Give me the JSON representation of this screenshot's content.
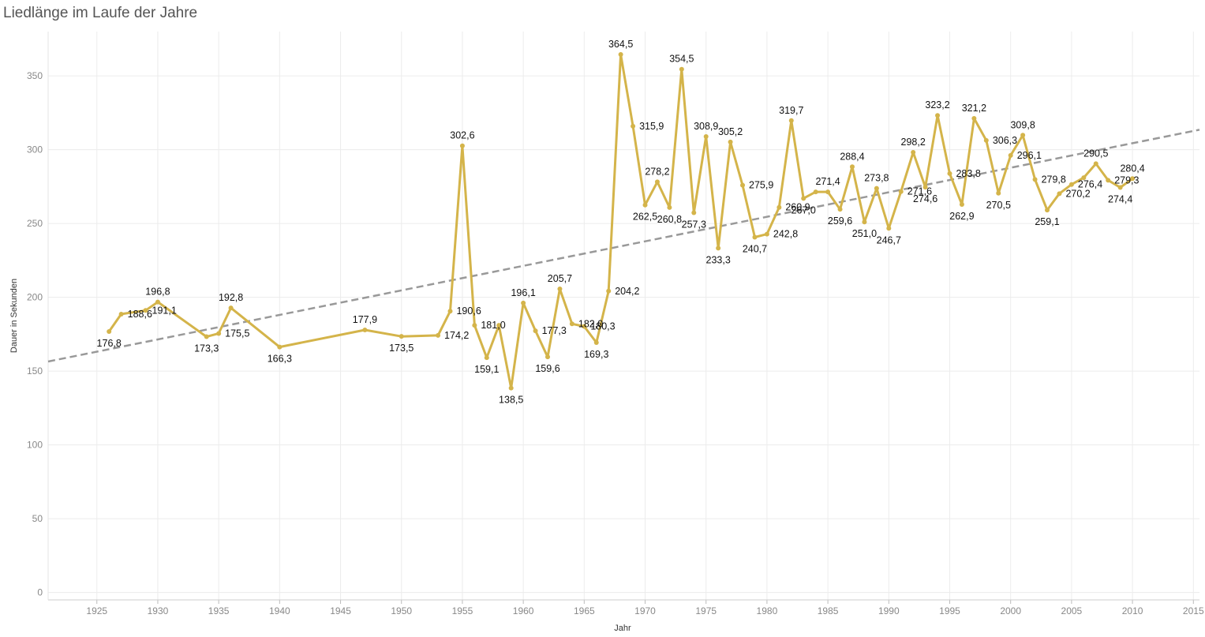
{
  "chart_data": {
    "type": "line",
    "title": "Liedlänge im Laufe der Jahre",
    "xlabel": "Jahr",
    "ylabel": "Dauer in Sekunden",
    "xlim": [
      1921,
      2015.5
    ],
    "ylim": [
      -5,
      380
    ],
    "x_ticks": [
      1925,
      1930,
      1935,
      1940,
      1945,
      1950,
      1955,
      1960,
      1965,
      1970,
      1975,
      1980,
      1985,
      1990,
      1995,
      2000,
      2005,
      2010,
      2015
    ],
    "y_ticks": [
      0,
      50,
      100,
      150,
      200,
      250,
      300,
      350
    ],
    "grid": true,
    "series": [
      {
        "color": "#d4b44a",
        "points": [
          {
            "x": 1926,
            "y": 176.8,
            "label": "176,8"
          },
          {
            "x": 1927,
            "y": 188.6,
            "label": "188,6"
          },
          {
            "x": 1929,
            "y": 191.1,
            "label": "191,1"
          },
          {
            "x": 1930,
            "y": 196.8,
            "label": "196,8"
          },
          {
            "x": 1934,
            "y": 173.3,
            "label": "173,3"
          },
          {
            "x": 1935,
            "y": 175.5,
            "label": "175,5"
          },
          {
            "x": 1936,
            "y": 192.8,
            "label": "192,8"
          },
          {
            "x": 1940,
            "y": 166.3,
            "label": "166,3"
          },
          {
            "x": 1947,
            "y": 177.9,
            "label": "177,9"
          },
          {
            "x": 1950,
            "y": 173.5,
            "label": "173,5"
          },
          {
            "x": 1953,
            "y": 174.2,
            "label": "174,2"
          },
          {
            "x": 1954,
            "y": 190.6,
            "label": "190,6"
          },
          {
            "x": 1955,
            "y": 302.6,
            "label": "302,6"
          },
          {
            "x": 1956,
            "y": 181.0,
            "label": "181,0"
          },
          {
            "x": 1957,
            "y": 159.1,
            "label": "159,1"
          },
          {
            "x": 1958,
            "y": 181.0,
            "label": ""
          },
          {
            "x": 1959,
            "y": 138.5,
            "label": "138,5"
          },
          {
            "x": 1960,
            "y": 196.1,
            "label": "196,1"
          },
          {
            "x": 1961,
            "y": 177.3,
            "label": "177,3"
          },
          {
            "x": 1962,
            "y": 159.6,
            "label": "159,6"
          },
          {
            "x": 1963,
            "y": 205.7,
            "label": "205,7"
          },
          {
            "x": 1964,
            "y": 182.0,
            "label": "182,0"
          },
          {
            "x": 1965,
            "y": 180.3,
            "label": "180,3"
          },
          {
            "x": 1966,
            "y": 169.3,
            "label": "169,3"
          },
          {
            "x": 1967,
            "y": 204.2,
            "label": "204,2"
          },
          {
            "x": 1968,
            "y": 364.5,
            "label": "364,5"
          },
          {
            "x": 1969,
            "y": 315.9,
            "label": "315,9"
          },
          {
            "x": 1970,
            "y": 262.5,
            "label": "262,5"
          },
          {
            "x": 1971,
            "y": 278.2,
            "label": "278,2"
          },
          {
            "x": 1972,
            "y": 260.8,
            "label": "260,8"
          },
          {
            "x": 1973,
            "y": 354.5,
            "label": "354,5"
          },
          {
            "x": 1974,
            "y": 257.3,
            "label": "257,3"
          },
          {
            "x": 1975,
            "y": 308.9,
            "label": "308,9"
          },
          {
            "x": 1976,
            "y": 233.3,
            "label": "233,3"
          },
          {
            "x": 1977,
            "y": 305.2,
            "label": "305,2"
          },
          {
            "x": 1978,
            "y": 275.9,
            "label": "275,9"
          },
          {
            "x": 1979,
            "y": 240.7,
            "label": "240,7"
          },
          {
            "x": 1980,
            "y": 242.8,
            "label": "242,8"
          },
          {
            "x": 1981,
            "y": 260.9,
            "label": "260,9"
          },
          {
            "x": 1982,
            "y": 319.7,
            "label": "319,7"
          },
          {
            "x": 1983,
            "y": 267.0,
            "label": "267,0"
          },
          {
            "x": 1984,
            "y": 271.4,
            "label": ""
          },
          {
            "x": 1985,
            "y": 271.4,
            "label": "271,4"
          },
          {
            "x": 1986,
            "y": 259.6,
            "label": "259,6"
          },
          {
            "x": 1987,
            "y": 288.4,
            "label": "288,4"
          },
          {
            "x": 1988,
            "y": 251.0,
            "label": "251,0"
          },
          {
            "x": 1989,
            "y": 273.8,
            "label": "273,8"
          },
          {
            "x": 1990,
            "y": 246.7,
            "label": "246,7"
          },
          {
            "x": 1991,
            "y": 271.6,
            "label": "271,6"
          },
          {
            "x": 1992,
            "y": 298.2,
            "label": "298,2"
          },
          {
            "x": 1993,
            "y": 274.6,
            "label": "274,6"
          },
          {
            "x": 1994,
            "y": 323.2,
            "label": "323,2"
          },
          {
            "x": 1995,
            "y": 283.8,
            "label": "283,8"
          },
          {
            "x": 1996,
            "y": 262.9,
            "label": "262,9"
          },
          {
            "x": 1997,
            "y": 321.2,
            "label": "321,2"
          },
          {
            "x": 1998,
            "y": 306.3,
            "label": "306,3"
          },
          {
            "x": 1999,
            "y": 270.5,
            "label": "270,5"
          },
          {
            "x": 2000,
            "y": 296.1,
            "label": "296,1"
          },
          {
            "x": 2001,
            "y": 309.8,
            "label": "309,8"
          },
          {
            "x": 2002,
            "y": 279.8,
            "label": "279,8"
          },
          {
            "x": 2003,
            "y": 259.1,
            "label": "259,1"
          },
          {
            "x": 2004,
            "y": 270.2,
            "label": "270,2"
          },
          {
            "x": 2005,
            "y": 276.4,
            "label": "276,4"
          },
          {
            "x": 2006,
            "y": 281.0,
            "label": ""
          },
          {
            "x": 2007,
            "y": 290.5,
            "label": "290,5"
          },
          {
            "x": 2008,
            "y": 279.3,
            "label": "279,3"
          },
          {
            "x": 2009,
            "y": 274.4,
            "label": "274,4"
          },
          {
            "x": 2010,
            "y": 280.4,
            "label": "280,4"
          }
        ]
      }
    ],
    "trend_line": {
      "style": "dashed",
      "color": "#999999",
      "start": {
        "x": 1921,
        "y": 156.5
      },
      "end": {
        "x": 2015.5,
        "y": 313.5
      }
    }
  }
}
